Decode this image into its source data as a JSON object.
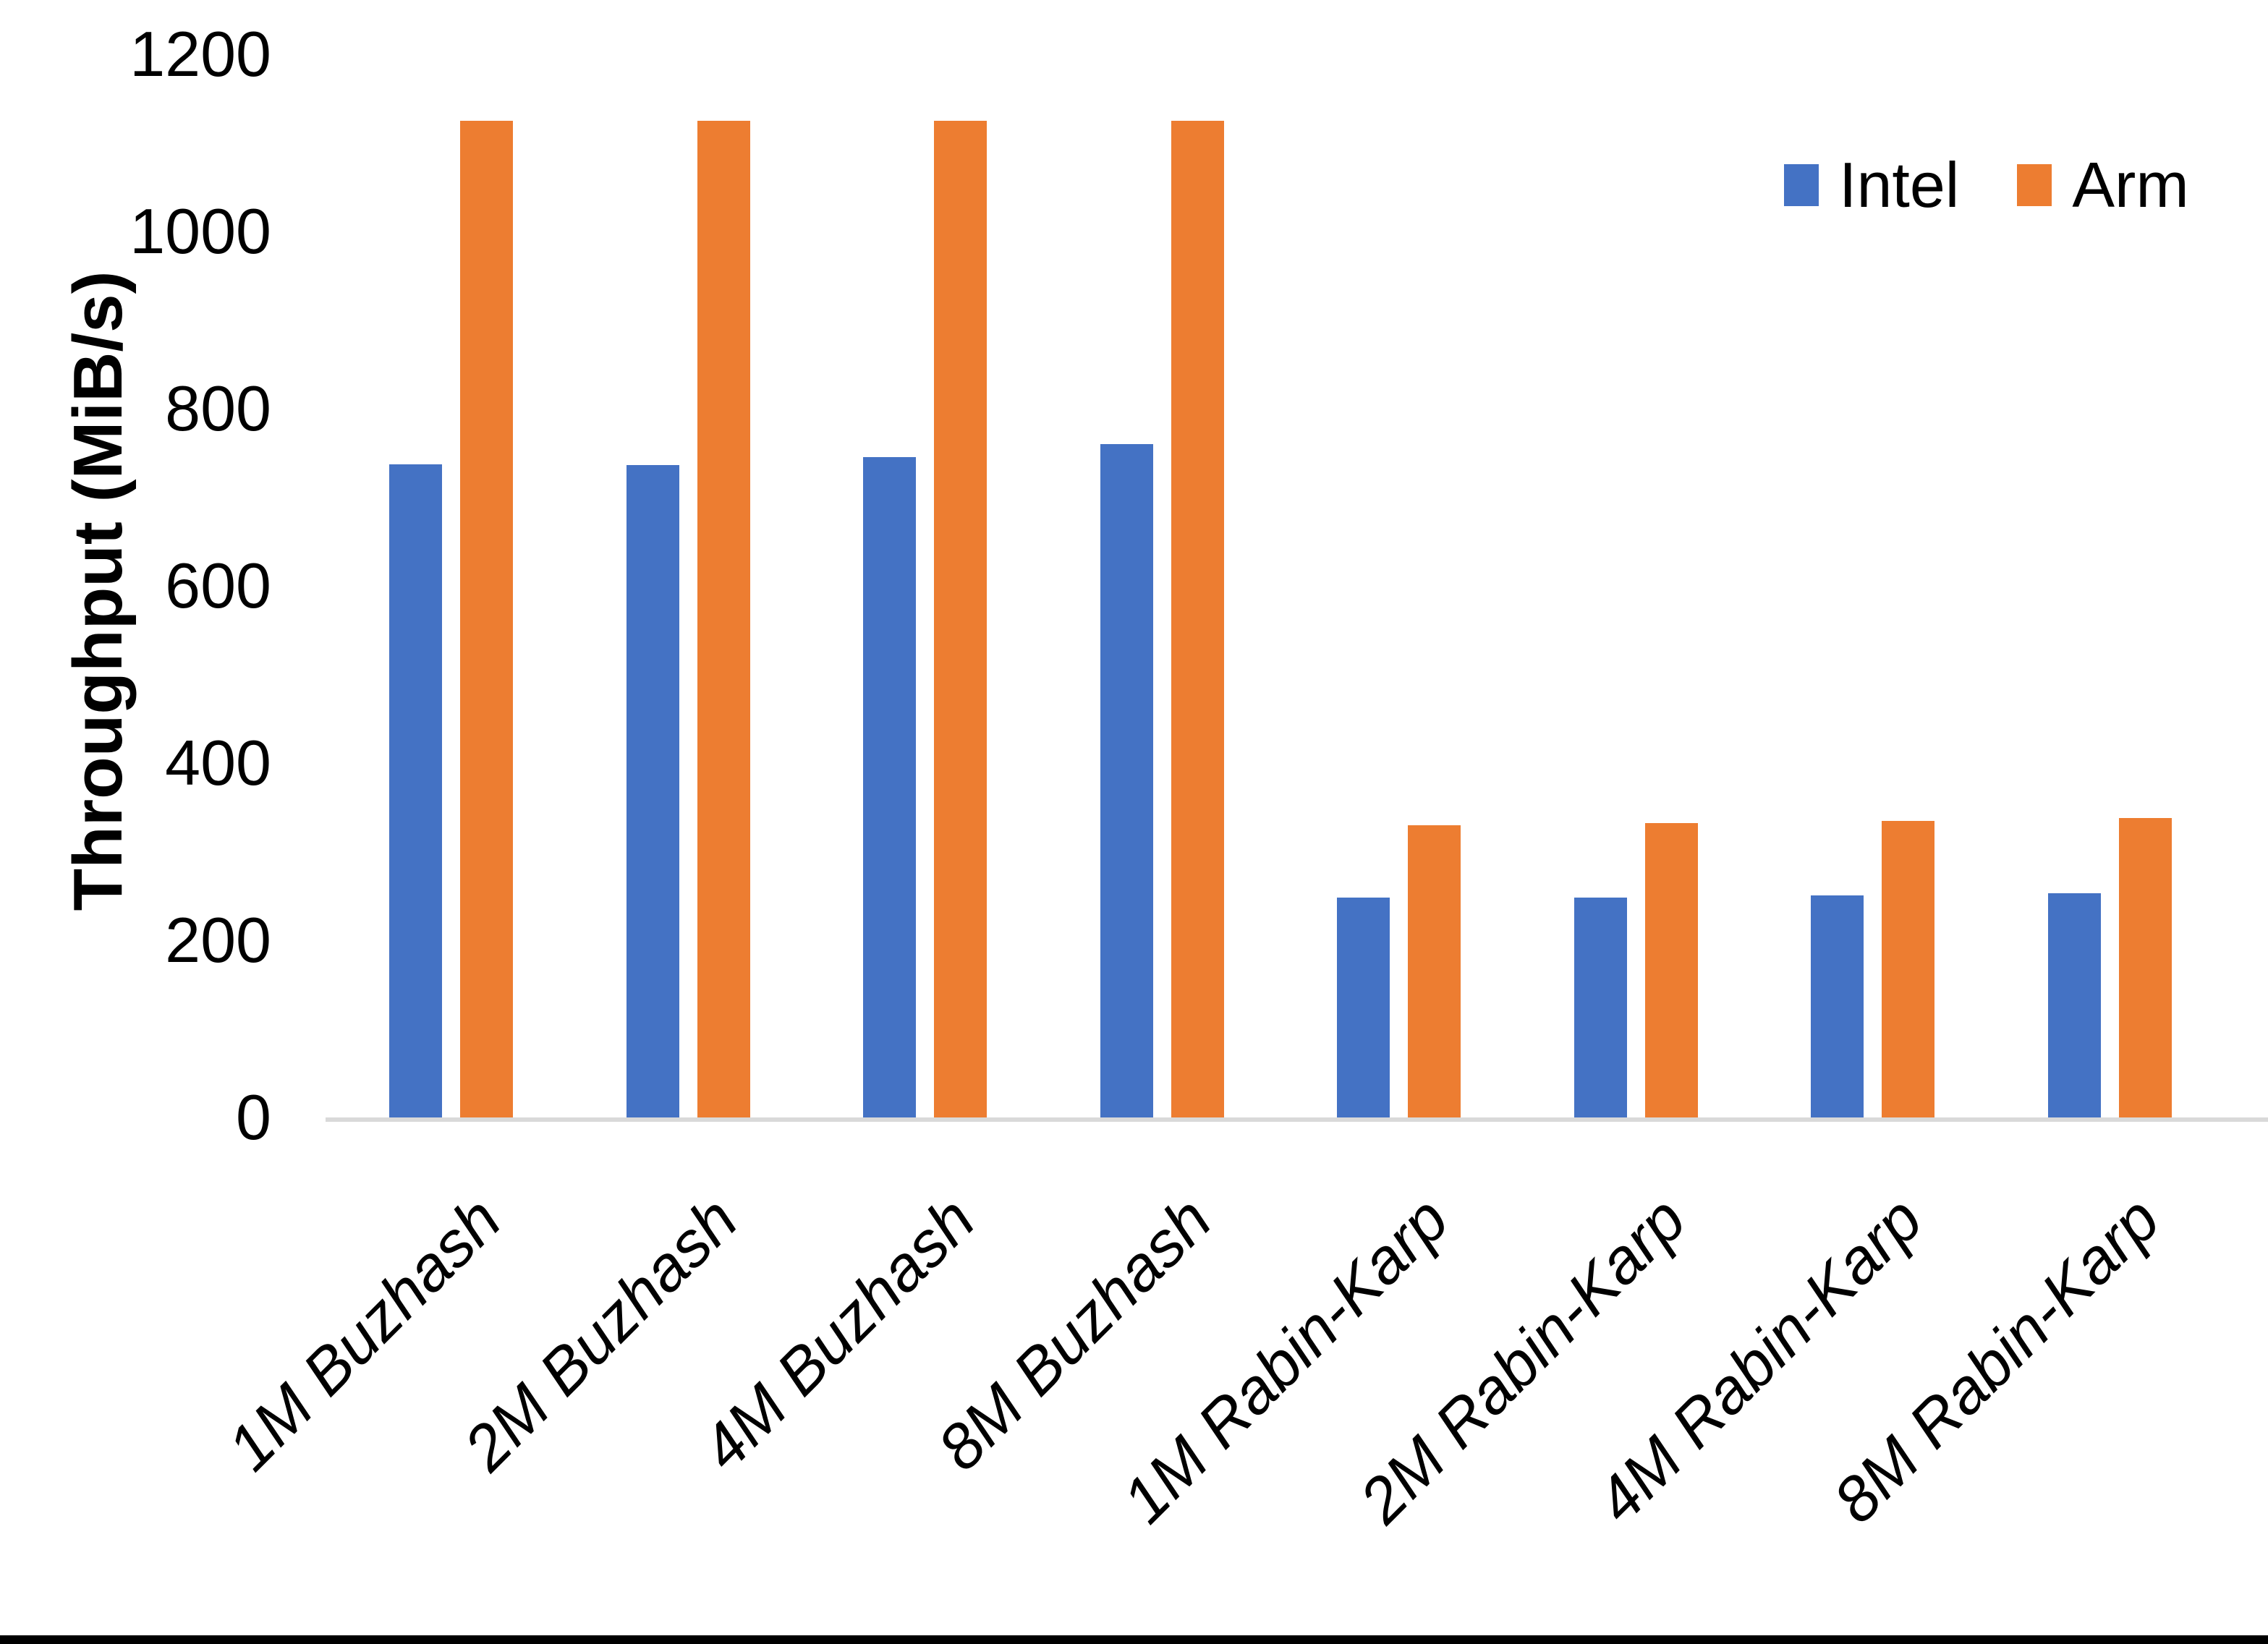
{
  "chart_data": {
    "type": "bar",
    "title": "",
    "xlabel": "",
    "ylabel": "Throughput (MiB/s)",
    "ylim": [
      0,
      1200
    ],
    "yticks": [
      0,
      200,
      400,
      600,
      800,
      1000,
      1200
    ],
    "grid": false,
    "legend_position": "top-right",
    "axis_line_color": "#d9d9d9",
    "text_color": "#000000",
    "categories": [
      "1M Buzhash",
      "2M Buzhash",
      "4M Buzhash",
      "8M Buzhash",
      "1M Rabin-Karp",
      "2M Rabin-Karp",
      "4M Rabin-Karp",
      "8M Rabin-Karp"
    ],
    "series": [
      {
        "name": "Intel",
        "color": "#4472C4",
        "values": [
          737,
          736,
          745,
          760,
          248,
          248,
          251,
          253
        ]
      },
      {
        "name": "Arm",
        "color": "#ED7D31",
        "values": [
          1125,
          1125,
          1125,
          1125,
          330,
          332,
          335,
          338
        ]
      }
    ]
  }
}
